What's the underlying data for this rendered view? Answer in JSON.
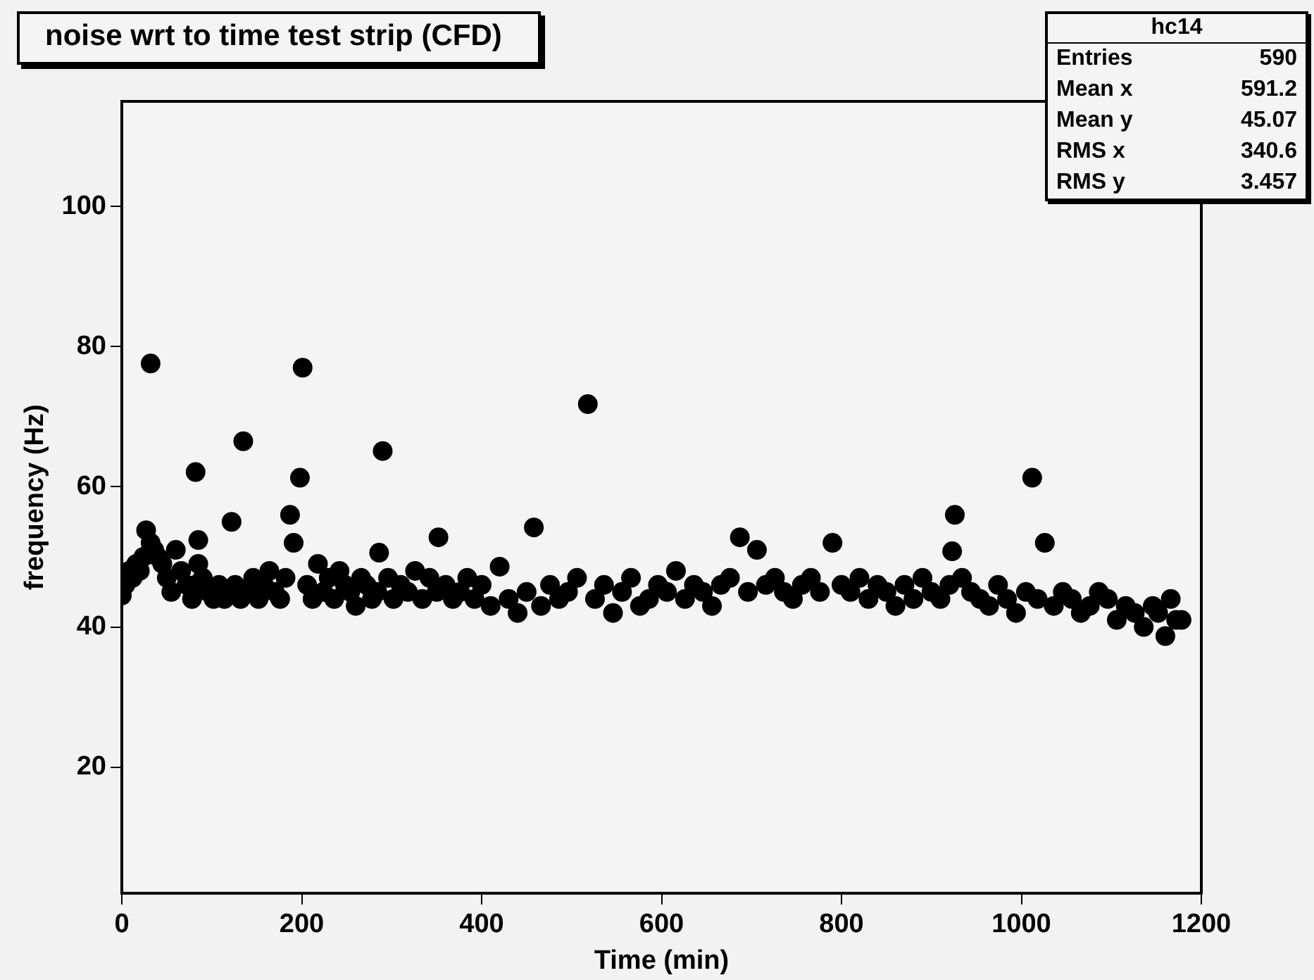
{
  "chart_data": {
    "type": "scatter",
    "title": "noise wrt to time test strip (CFD)",
    "xlabel": "Time (min)",
    "ylabel": "frequency (Hz)",
    "xlim": [
      0,
      1200
    ],
    "xticks": [
      0,
      200,
      400,
      600,
      800,
      1000,
      1200
    ],
    "ylim": [
      2,
      115
    ],
    "yticks": [
      20,
      40,
      60,
      80,
      100
    ],
    "grid": false,
    "legend": false,
    "marker": "circle",
    "annotations": [
      "hc14",
      "Entries",
      "590",
      "Mean x",
      "591.2",
      "Mean y",
      "45.07",
      "RMS x",
      "340.6",
      "RMS y",
      "3.457"
    ],
    "series": [
      {
        "color": "#000000",
        "x": [
          0,
          4,
          8,
          12,
          16,
          20,
          24,
          27,
          32,
          36,
          40,
          45,
          50,
          55,
          60,
          66,
          72,
          78,
          82,
          85,
          90,
          96,
          102,
          108,
          114,
          122,
          126,
          132,
          135,
          140,
          146,
          152,
          158,
          164,
          170,
          176,
          182,
          187,
          191,
          198,
          201,
          206,
          212,
          218,
          224,
          230,
          236,
          242,
          248,
          254,
          260,
          266,
          272,
          278,
          284,
          286,
          290,
          296,
          302,
          310,
          318,
          326,
          334,
          342,
          350,
          352,
          360,
          368,
          376,
          384,
          392,
          400,
          410,
          420,
          430,
          440,
          450,
          458,
          466,
          476,
          486,
          496,
          506,
          518,
          526,
          536,
          546,
          556,
          566,
          576,
          586,
          596,
          606,
          616,
          626,
          636,
          646,
          656,
          666,
          676,
          687,
          696,
          706,
          716,
          726,
          736,
          746,
          756,
          766,
          776,
          790,
          800,
          810,
          820,
          830,
          840,
          850,
          860,
          870,
          880,
          890,
          900,
          910,
          920,
          923,
          926,
          934,
          944,
          954,
          964,
          974,
          984,
          994,
          1005,
          1012,
          1018,
          1026,
          1036,
          1046,
          1056,
          1066,
          1076,
          1086,
          1096,
          1106,
          1116,
          1126,
          1136,
          1146,
          1152,
          1160,
          1166,
          1172,
          1178
        ],
        "values": [
          44.5,
          46,
          48,
          47,
          49,
          48,
          50,
          53.8,
          52,
          51,
          50,
          49,
          47,
          45,
          51,
          48,
          46,
          44,
          46,
          49,
          47,
          45,
          44,
          46,
          44,
          55,
          46,
          44,
          66.5,
          45,
          47,
          44,
          46,
          48,
          45,
          44,
          47,
          56,
          52,
          61.3,
          77,
          46,
          44,
          49,
          45,
          47,
          44,
          48,
          46,
          45,
          43,
          47,
          46,
          44,
          45,
          50.6,
          65.1,
          47,
          44,
          46,
          45,
          48,
          44,
          47,
          45,
          52.8,
          46,
          44,
          45,
          47,
          44,
          46,
          43,
          48.6,
          44,
          42,
          45,
          54.2,
          43,
          46,
          44,
          45,
          47,
          71.8,
          44,
          46,
          42,
          45,
          47,
          43,
          44,
          46,
          45,
          48,
          44,
          46,
          45,
          43,
          46,
          47,
          52.8,
          45,
          51,
          46,
          47,
          45,
          44,
          46,
          47,
          45,
          52,
          46,
          45,
          47,
          44,
          46,
          45,
          43,
          46,
          44,
          47,
          45,
          44,
          46,
          50.8,
          56,
          47,
          45,
          44,
          43,
          46,
          44,
          42,
          45,
          61.3,
          44,
          52,
          43,
          45,
          44,
          42,
          43,
          45,
          44,
          41,
          43,
          42,
          40,
          43,
          42,
          38.7,
          44,
          41,
          41
        ]
      },
      {
        "color": "#000000",
        "x": [
          32,
          82,
          85
        ],
        "values": [
          77.6,
          62.1,
          52.4
        ]
      }
    ]
  }
}
